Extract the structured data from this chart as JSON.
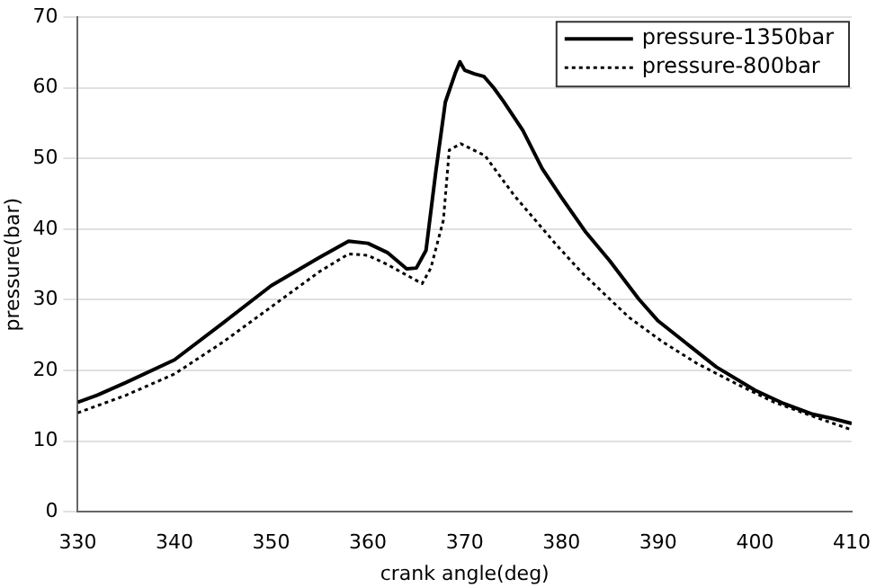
{
  "chart_data": {
    "type": "line",
    "xlabel": "crank angle(deg)",
    "ylabel": "pressure(bar)",
    "xlim": [
      330,
      410
    ],
    "xticks": [
      330,
      340,
      350,
      360,
      370,
      380,
      390,
      400,
      410
    ],
    "ylim": [
      0,
      70
    ],
    "yticks": [
      0,
      10,
      20,
      30,
      40,
      50,
      60,
      70
    ],
    "grid": "y",
    "legend": "top right",
    "marker": "none",
    "series": [
      {
        "name": "pressure-1350bar",
        "color": "#000000",
        "line_style": "solid",
        "x": [
          330,
          332,
          335,
          340,
          345,
          350,
          355,
          358,
          360,
          362,
          364,
          365,
          366,
          367,
          368,
          369,
          369.5,
          370,
          371,
          372,
          373,
          374,
          376,
          378,
          380,
          382.5,
          385,
          388,
          390,
          393.5,
          396,
          400,
          403,
          406,
          408,
          410
        ],
        "values": [
          15.5,
          16.5,
          18.3,
          21.5,
          26.7,
          32,
          36,
          38.3,
          38,
          36.7,
          34.4,
          34.5,
          37,
          48,
          58,
          62,
          63.7,
          62.5,
          62,
          61.6,
          60,
          58.1,
          54,
          48.6,
          44.5,
          39.6,
          35.5,
          30.1,
          27,
          23.2,
          20.5,
          17.2,
          15.3,
          13.8,
          13.2,
          12.5
        ]
      },
      {
        "name": "pressure-800bar",
        "color": "#000000",
        "line_style": "dotted",
        "x": [
          330,
          335,
          340,
          345,
          350,
          355,
          358,
          360,
          362,
          364,
          365.6,
          366.5,
          367.8,
          368.4,
          369.6,
          370.5,
          372.1,
          375.1,
          379.4,
          382,
          384.3,
          387,
          390.4,
          394,
          398.1,
          402,
          406,
          410
        ],
        "values": [
          14,
          16.5,
          19.5,
          24,
          29,
          34,
          36.5,
          36.3,
          35,
          33.5,
          32.3,
          34.5,
          41.3,
          51.2,
          52.1,
          51.5,
          50.4,
          44.8,
          37.9,
          34,
          31,
          27.5,
          24.1,
          21,
          18.1,
          15.5,
          13.5,
          11.6
        ]
      }
    ]
  }
}
